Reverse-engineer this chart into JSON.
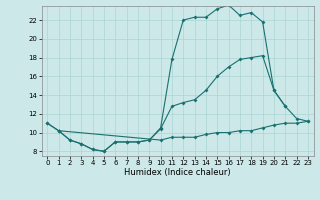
{
  "xlabel": "Humidex (Indice chaleur)",
  "bg_color": "#cce8e8",
  "grid_color": "#aad4d4",
  "line_color": "#1a7070",
  "xlim": [
    -0.5,
    23.5
  ],
  "ylim": [
    7.5,
    23.5
  ],
  "xticks": [
    0,
    1,
    2,
    3,
    4,
    5,
    6,
    7,
    8,
    9,
    10,
    11,
    12,
    13,
    14,
    15,
    16,
    17,
    18,
    19,
    20,
    21,
    22,
    23
  ],
  "yticks": [
    8,
    10,
    12,
    14,
    16,
    18,
    20,
    22
  ],
  "line1_x": [
    0,
    1,
    2,
    3,
    4,
    5,
    6,
    7,
    8,
    9,
    10,
    11,
    12,
    13,
    14,
    15,
    16,
    17,
    18,
    19,
    20,
    21
  ],
  "line1_y": [
    11,
    10.2,
    9.2,
    8.8,
    8.2,
    8.0,
    9.0,
    9.0,
    9.0,
    9.2,
    10.5,
    17.8,
    22.0,
    22.3,
    22.3,
    23.2,
    23.6,
    22.5,
    22.8,
    21.8,
    14.5,
    12.8
  ],
  "line2_x": [
    0,
    1,
    2,
    3,
    4,
    5,
    6,
    7,
    8,
    9,
    10,
    11,
    12,
    13,
    14,
    15,
    16,
    17,
    18,
    19,
    20,
    21,
    22,
    23
  ],
  "line2_y": [
    11,
    10.2,
    9.2,
    8.8,
    8.2,
    8.0,
    9.0,
    9.0,
    9.0,
    9.2,
    10.4,
    12.8,
    13.2,
    13.5,
    14.5,
    16.0,
    17.0,
    17.8,
    18.0,
    18.2,
    14.5,
    12.8,
    11.5,
    11.2
  ],
  "line3_x": [
    1,
    10,
    11,
    12,
    13,
    14,
    15,
    16,
    17,
    18,
    19,
    20,
    21,
    22,
    23
  ],
  "line3_y": [
    10.2,
    9.2,
    9.5,
    9.5,
    9.5,
    9.8,
    10.0,
    10.0,
    10.2,
    10.2,
    10.5,
    10.8,
    11.0,
    11.0,
    11.2
  ],
  "lw": 0.8,
  "ms": 2.0,
  "xlabel_fontsize": 6.0,
  "tick_fontsize": 5.0
}
